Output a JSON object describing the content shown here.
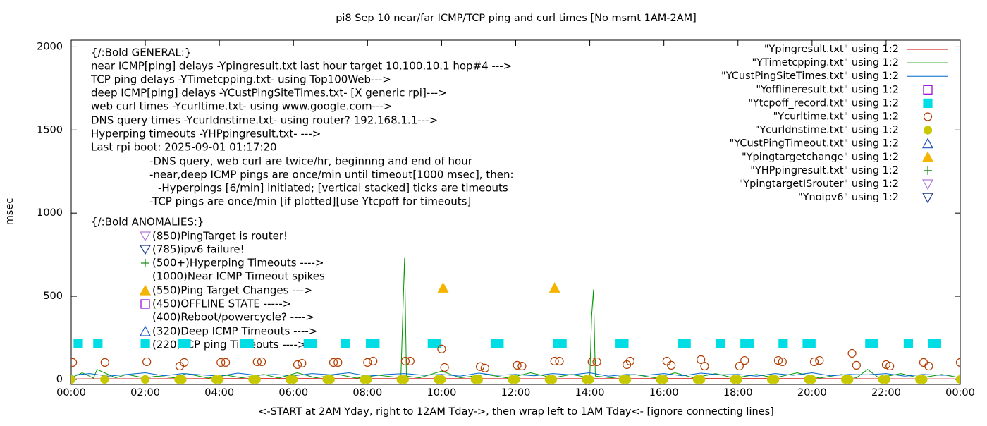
{
  "chart_data": {
    "type": "line",
    "title": "pi8 Sep 10  near/far ICMP/TCP ping and curl times [No msmt 1AM-2AM]",
    "xlabel": "<-START at 2AM Yday, right to 12AM Tday->, then wrap left to 1AM Tday<- [ignore connecting lines]",
    "ylabel": "msec",
    "xlim": [
      0,
      24
    ],
    "ylim": [
      -30,
      2040
    ],
    "xticks": [
      {
        "value": 0,
        "label": "00:00"
      },
      {
        "value": 2,
        "label": "02:00"
      },
      {
        "value": 4,
        "label": "04:00"
      },
      {
        "value": 6,
        "label": "06:00"
      },
      {
        "value": 8,
        "label": "08:00"
      },
      {
        "value": 10,
        "label": "10:00"
      },
      {
        "value": 12,
        "label": "12:00"
      },
      {
        "value": 14,
        "label": "14:00"
      },
      {
        "value": 16,
        "label": "16:00"
      },
      {
        "value": 18,
        "label": "18:00"
      },
      {
        "value": 20,
        "label": "20:00"
      },
      {
        "value": 22,
        "label": "22:00"
      },
      {
        "value": 24,
        "label": "00:00"
      }
    ],
    "yticks": [
      0,
      500,
      1000,
      1500,
      2000
    ],
    "grid": false,
    "legend": "top-right",
    "annotations": [
      "{/:Bold GENERAL:}",
      "near ICMP[ping] delays -Ypingresult.txt last hour target 10.100.10.1 hop#4 --->",
      "TCP ping delays -YTimetcpping.txt- using Top100Web--->",
      "deep ICMP[ping] delays -YCustPingSiteTimes.txt- [X generic rpi]--->",
      "web curl times -Ycurltime.txt- using www.google.com--->",
      "DNS query times -Ycurldnstime.txt- using router? 192.168.1.1--->",
      "Hyperping timeouts -YHPpingresult.txt- --->",
      "Last rpi boot: 2025-09-01 01:17:20",
      "-DNS query, web curl are twice/hr, beginnng and end of hour",
      "-near,deep ICMP pings are once/min until timeout[1000 msec], then:",
      "-Hyperpings [6/min] initiated; [vertical stacked] ticks are timeouts",
      "-TCP pings are once/min [if plotted][use Ytcpoff for timeouts]",
      "{/:Bold ANOMALIES:}",
      "(850)PingTarget is router!",
      "(785)ipv6 failure!",
      "(500+)Hyperping Timeouts ---->",
      "(1000)Near ICMP Timeout spikes",
      "(550)Ping Target Changes --->",
      "(450)OFFLINE STATE ----->",
      "(400)Reboot/powercycle? ---->",
      "(320)Deep ICMP Timeouts ---->",
      "(220)TCP ping Timeouts ---->"
    ],
    "series": [
      {
        "name": "\"Ypingresult.txt\" using 1:2",
        "color": "#cc0000",
        "style": "line",
        "x": [
          0,
          6,
          12,
          18,
          24
        ],
        "values": [
          3,
          5,
          4,
          5,
          3
        ]
      },
      {
        "name": "\"YTimetcpping.txt\" using 1:2",
        "color": "#009900",
        "style": "line",
        "x": [
          0,
          0.3,
          0.6,
          0.7,
          1.2,
          1.5,
          2.0,
          2.3,
          2.8,
          3.1,
          3.7,
          4.2,
          4.6,
          5.2,
          5.6,
          6.1,
          6.6,
          7.2,
          7.7,
          8.3,
          8.9,
          8.95,
          9.0,
          9.05,
          9.4,
          10.0,
          10.5,
          11.2,
          11.8,
          12.4,
          13.0,
          13.5,
          14.0,
          14.05,
          14.1,
          14.15,
          14.6,
          15.2,
          15.8,
          16.3,
          16.8,
          17.4,
          17.9,
          18.5,
          19.0,
          19.6,
          20.2,
          20.8,
          21.2,
          21.5,
          21.8,
          22.4,
          22.9,
          23.5,
          24.0
        ],
        "values": [
          10,
          40,
          8,
          60,
          10,
          30,
          8,
          20,
          10,
          35,
          8,
          25,
          10,
          30,
          8,
          40,
          10,
          30,
          8,
          25,
          10,
          380,
          730,
          20,
          10,
          50,
          10,
          30,
          8,
          40,
          10,
          30,
          10,
          380,
          540,
          20,
          10,
          30,
          8,
          40,
          10,
          35,
          8,
          30,
          10,
          40,
          8,
          30,
          10,
          60,
          10,
          35,
          8,
          30,
          10
        ]
      },
      {
        "name": "\"YCustPingSiteTimes.txt\" using 1:2",
        "color": "#0066cc",
        "style": "line",
        "x": [
          0,
          0.5,
          1,
          1.5,
          2,
          2.5,
          3,
          3.5,
          4,
          4.5,
          5,
          5.5,
          6,
          6.5,
          7,
          7.5,
          8,
          8.5,
          9,
          9.5,
          10,
          10.5,
          11,
          11.5,
          12,
          12.5,
          13,
          13.5,
          14,
          14.5,
          15,
          15.5,
          16,
          16.5,
          17,
          17.5,
          18,
          18.5,
          19,
          19.5,
          20,
          20.5,
          21,
          21.5,
          22,
          22.5,
          23,
          23.5,
          24
        ],
        "values": [
          25,
          35,
          20,
          30,
          40,
          22,
          35,
          28,
          20,
          38,
          25,
          30,
          22,
          35,
          28,
          40,
          20,
          30,
          35,
          25,
          30,
          20,
          38,
          25,
          30,
          22,
          35,
          28,
          40,
          20,
          30,
          25,
          35,
          22,
          38,
          28,
          30,
          20,
          35,
          25,
          40,
          22,
          30,
          28,
          35,
          20,
          30,
          25,
          28
        ]
      },
      {
        "name": "\"Yofflineresult.txt\" using 1:2",
        "color": "#9400d3",
        "style": "points",
        "marker": "square-open",
        "x": [],
        "values": []
      },
      {
        "name": "\"Ytcpoff_record.txt\" using 1:2",
        "color": "#00dde5",
        "style": "points",
        "marker": "square-filled",
        "x": [
          0.19,
          0.72,
          2.0,
          3.0,
          3.1,
          4.68,
          4.8,
          6.4,
          6.5,
          7.41,
          8.08,
          8.2,
          9.75,
          9.85,
          11.45,
          11.55,
          13.14,
          13.25,
          14.82,
          14.92,
          16.5,
          16.6,
          17.52,
          18.19,
          18.3,
          19.22,
          19.87,
          19.97,
          21.56,
          21.66,
          22.6,
          23.26,
          23.36
        ],
        "values": [
          215,
          215,
          215,
          215,
          215,
          215,
          215,
          215,
          215,
          215,
          215,
          215,
          215,
          215,
          215,
          215,
          215,
          215,
          215,
          215,
          215,
          215,
          215,
          215,
          215,
          215,
          215,
          215,
          215,
          215,
          215,
          215,
          215
        ]
      },
      {
        "name": "\"Ycurltime.txt\" using 1:2",
        "color": "#b03c00",
        "style": "points",
        "marker": "circle-open",
        "x": [
          0.04,
          0.91,
          2.04,
          2.93,
          3.05,
          4.04,
          4.17,
          5.02,
          5.14,
          6.11,
          6.23,
          7.08,
          7.2,
          8.0,
          8.15,
          9.02,
          9.15,
          10.0,
          10.08,
          11.04,
          11.17,
          12.04,
          12.17,
          13.05,
          13.18,
          14.06,
          14.19,
          15.0,
          15.09,
          16.08,
          16.2,
          17.0,
          17.1,
          18.04,
          18.18,
          19.09,
          19.2,
          20.06,
          20.2,
          21.08,
          21.2,
          22.0,
          22.1,
          23.01,
          23.15,
          24.0
        ],
        "values": [
          102,
          102,
          106,
          80,
          102,
          102,
          102,
          106,
          106,
          89,
          97,
          102,
          102,
          102,
          110,
          110,
          110,
          183,
          72,
          77,
          68,
          85,
          80,
          110,
          110,
          106,
          106,
          89,
          110,
          110,
          85,
          119,
          80,
          80,
          114,
          114,
          106,
          106,
          114,
          157,
          85,
          89,
          80,
          102,
          80,
          102
        ]
      },
      {
        "name": "\"Ycurldnstime.txt\" using 1:2",
        "color": "#c8c800",
        "style": "points",
        "marker": "circle-filled",
        "x": [
          0,
          0.9,
          2.0,
          2.9,
          3.0,
          3.9,
          4.0,
          4.9,
          5.0,
          5.9,
          6.0,
          6.9,
          7.0,
          7.9,
          8.0,
          8.9,
          9.0,
          9.9,
          10.0,
          10.9,
          11.0,
          11.9,
          12.0,
          12.9,
          13.0,
          13.9,
          14.0,
          14.9,
          15.0,
          15.9,
          16.0,
          16.9,
          17.0,
          17.9,
          18.0,
          18.9,
          19.0,
          19.9,
          20.0,
          20.9,
          21.0,
          21.9,
          22.0,
          22.9,
          23.0,
          24.0
        ],
        "values": [
          0,
          0,
          0,
          0,
          0,
          0,
          0,
          0,
          0,
          0,
          0,
          0,
          0,
          0,
          0,
          0,
          0,
          0,
          0,
          0,
          0,
          0,
          0,
          0,
          0,
          0,
          0,
          0,
          0,
          0,
          0,
          0,
          0,
          0,
          0,
          0,
          0,
          0,
          0,
          0,
          0,
          0,
          0,
          0,
          0,
          0
        ]
      },
      {
        "name": "\"YCustPingTimeout.txt\" using 1:2",
        "color": "#1a56c8",
        "style": "points",
        "marker": "triangle-up-open",
        "x": [],
        "values": []
      },
      {
        "name": "\"Ypingtargetchange\" using 1:2",
        "color": "#f5b400",
        "style": "points",
        "marker": "triangle-up-filled",
        "x": [
          10.04,
          13.05
        ],
        "values": [
          550,
          550
        ]
      },
      {
        "name": "\"YHPpingresult.txt\" using 1:2",
        "color": "#1a8c1a",
        "style": "points",
        "marker": "plus",
        "x": [],
        "values": []
      },
      {
        "name": "\"YpingtargetISrouter\" using 1:2",
        "color": "#b07cd8",
        "style": "points",
        "marker": "triangle-down-open",
        "x": [],
        "values": []
      },
      {
        "name": "\"Ynoipv6\" using 1:2",
        "color": "#1a3a8c",
        "style": "points",
        "marker": "triangle-down-open",
        "x": [],
        "values": []
      }
    ]
  }
}
